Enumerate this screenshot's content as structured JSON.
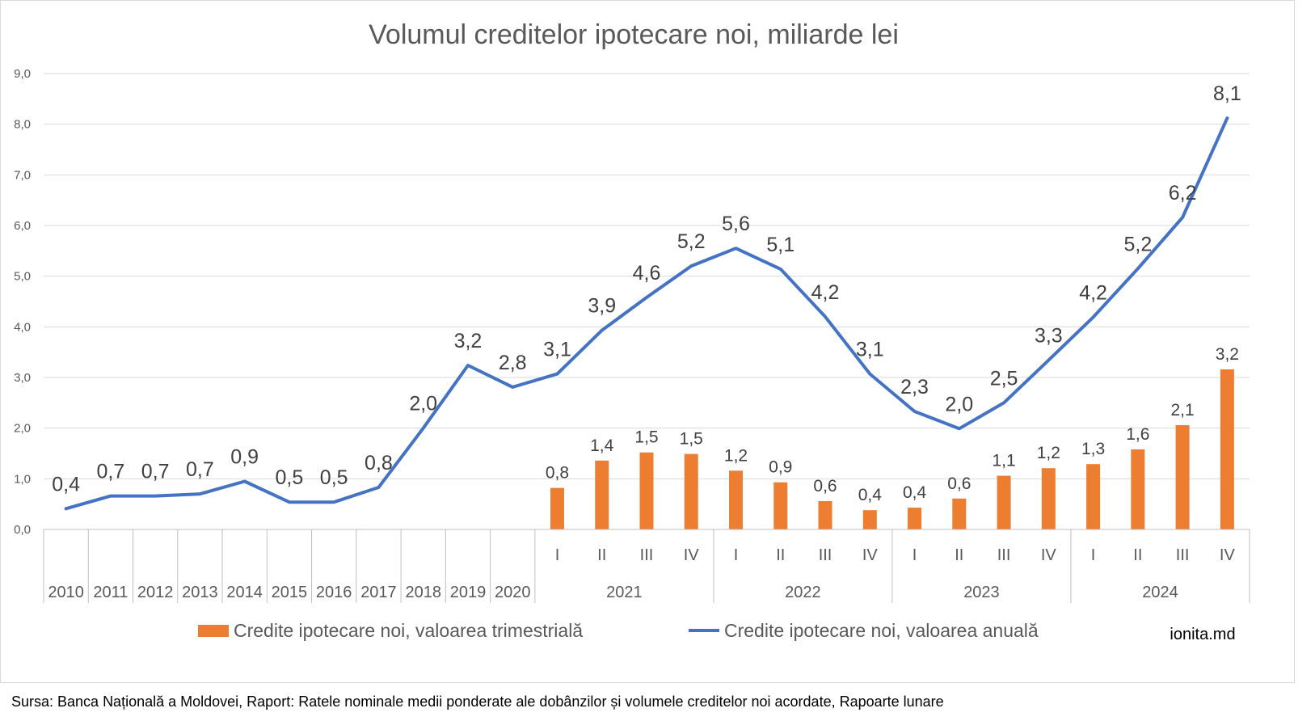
{
  "chart_data": {
    "type": "bar+line",
    "title": "Volumul creditelor ipotecare noi, miliarde lei",
    "ylim": [
      0,
      9
    ],
    "yticks": [
      "0,0",
      "1,0",
      "2,0",
      "3,0",
      "4,0",
      "5,0",
      "6,0",
      "7,0",
      "8,0",
      "9,0"
    ],
    "grid": true,
    "legend_position": "bottom",
    "categories": [
      {
        "group": "2010",
        "sub": ""
      },
      {
        "group": "2011",
        "sub": ""
      },
      {
        "group": "2012",
        "sub": ""
      },
      {
        "group": "2013",
        "sub": ""
      },
      {
        "group": "2014",
        "sub": ""
      },
      {
        "group": "2015",
        "sub": ""
      },
      {
        "group": "2016",
        "sub": ""
      },
      {
        "group": "2017",
        "sub": ""
      },
      {
        "group": "2018",
        "sub": ""
      },
      {
        "group": "2019",
        "sub": ""
      },
      {
        "group": "2020",
        "sub": ""
      },
      {
        "group": "2021",
        "sub": "I"
      },
      {
        "group": "2021",
        "sub": "II"
      },
      {
        "group": "2021",
        "sub": "III"
      },
      {
        "group": "2021",
        "sub": "IV"
      },
      {
        "group": "2022",
        "sub": "I"
      },
      {
        "group": "2022",
        "sub": "II"
      },
      {
        "group": "2022",
        "sub": "III"
      },
      {
        "group": "2022",
        "sub": "IV"
      },
      {
        "group": "2023",
        "sub": "I"
      },
      {
        "group": "2023",
        "sub": "II"
      },
      {
        "group": "2023",
        "sub": "III"
      },
      {
        "group": "2023",
        "sub": "IV"
      },
      {
        "group": "2024",
        "sub": "I"
      },
      {
        "group": "2024",
        "sub": "II"
      },
      {
        "group": "2024",
        "sub": "III"
      },
      {
        "group": "2024",
        "sub": "IV"
      }
    ],
    "series": [
      {
        "name": "Credite ipotecare noi, valoarea trimestrială",
        "type": "bar",
        "color": "#ED7D31",
        "values": [
          null,
          null,
          null,
          null,
          null,
          null,
          null,
          null,
          null,
          null,
          null,
          0.82,
          1.36,
          1.52,
          1.49,
          1.16,
          0.93,
          0.56,
          0.38,
          0.43,
          0.61,
          1.06,
          1.21,
          1.29,
          1.58,
          2.06,
          3.16
        ],
        "labels": [
          "",
          "",
          "",
          "",
          "",
          "",
          "",
          "",
          "",
          "",
          "",
          "0,8",
          "1,4",
          "1,5",
          "1,5",
          "1,2",
          "0,9",
          "0,6",
          "0,4",
          "0,4",
          "0,6",
          "1,1",
          "1,2",
          "1,3",
          "1,6",
          "2,1",
          "3,2"
        ]
      },
      {
        "name": "Credite ipotecare noi, valoarea anuală",
        "type": "line",
        "color": "#4472C4",
        "values": [
          0.41,
          0.66,
          0.66,
          0.7,
          0.95,
          0.54,
          0.54,
          0.83,
          2.0,
          3.24,
          2.81,
          3.07,
          3.93,
          4.58,
          5.2,
          5.55,
          5.14,
          4.2,
          3.07,
          2.33,
          1.99,
          2.5,
          3.34,
          4.19,
          5.15,
          6.16,
          8.12
        ],
        "labels": [
          "0,4",
          "0,7",
          "0,7",
          "0,7",
          "0,9",
          "0,5",
          "0,5",
          "0,8",
          "2,0",
          "3,2",
          "2,8",
          "3,1",
          "3,9",
          "4,6",
          "5,2",
          "5,6",
          "5,1",
          "4,2",
          "3,1",
          "2,3",
          "2,0",
          "2,5",
          "3,3",
          "4,2",
          "5,2",
          "6,2",
          "8,1"
        ]
      }
    ],
    "watermark": "ionita.md",
    "source": "Sursa: Banca Națională a Moldovei, Raport: Ratele nominale medii ponderate ale dobânzilor și volumele creditelor noi acordate, Rapoarte lunare"
  }
}
